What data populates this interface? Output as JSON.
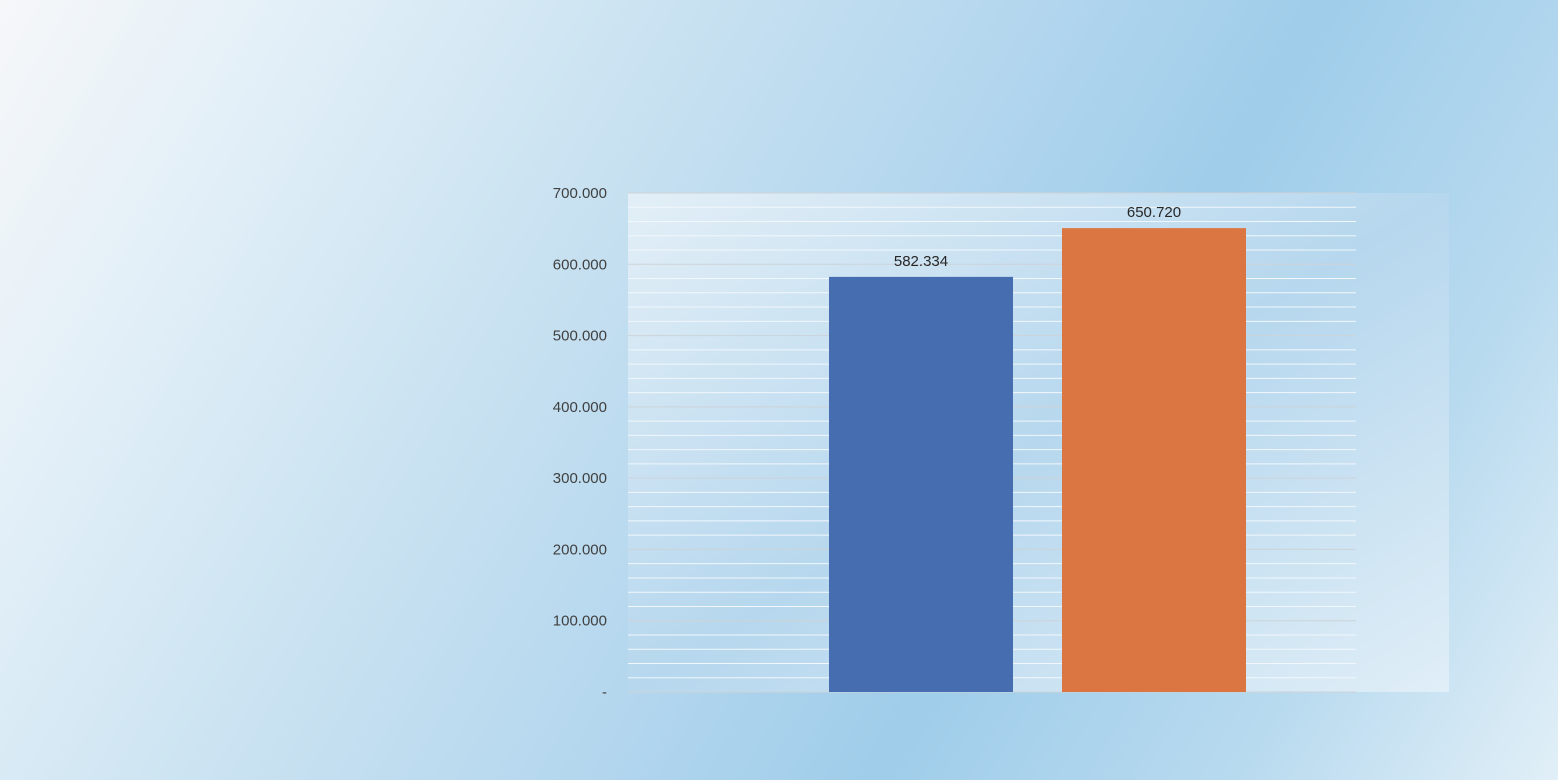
{
  "chart_data": {
    "type": "bar",
    "categories": [
      "",
      ""
    ],
    "values": [
      582.334,
      650.72
    ],
    "value_labels": [
      "582.334",
      "650.720"
    ],
    "colors": [
      "#466daf",
      "#db7541"
    ],
    "ylim": [
      0,
      700
    ],
    "yticks": [
      {
        "value": 0,
        "label": "-"
      },
      {
        "value": 100,
        "label": "100.000"
      },
      {
        "value": 200,
        "label": "200.000"
      },
      {
        "value": 300,
        "label": "300.000"
      },
      {
        "value": 400,
        "label": "400.000"
      },
      {
        "value": 500,
        "label": "500.000"
      },
      {
        "value": 600,
        "label": "600.000"
      },
      {
        "value": 700,
        "label": "700.000"
      }
    ],
    "grid": true,
    "title": "",
    "xlabel": "",
    "ylabel": ""
  }
}
